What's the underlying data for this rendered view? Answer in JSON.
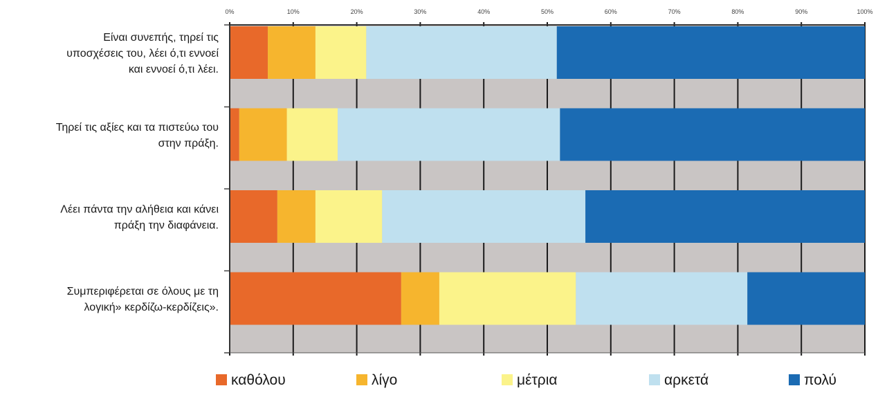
{
  "chart_data": {
    "type": "bar",
    "stacked": "percent",
    "orientation": "horizontal",
    "categories": [
      [
        "Είναι συνεπής, τηρεί τις",
        "υποσχέσεις του, λέει ό,τι εννοεί",
        "και εννοεί ό,τι λέει."
      ],
      [
        "Τηρεί τις αξίες και τα πιστεύω του",
        "στην πράξη."
      ],
      [
        "Λέει πάντα την αλήθεια και κάνει",
        "πράξη την διαφάνεια."
      ],
      [
        "Συμπεριφέρεται σε όλους με τη",
        "λογική» κερδίζω-κερδίζεις»."
      ]
    ],
    "series": [
      {
        "name": "καθόλου",
        "color": "#e8692a",
        "values": [
          6,
          1.5,
          7.5,
          27
        ]
      },
      {
        "name": "λίγο",
        "color": "#f6b52e",
        "values": [
          7.5,
          7.5,
          6,
          6
        ]
      },
      {
        "name": "μέτρια",
        "color": "#fbf38a",
        "values": [
          8,
          8,
          10.5,
          21.5
        ]
      },
      {
        "name": "αρκετά",
        "color": "#bfe0ef",
        "values": [
          30,
          35,
          32,
          27
        ]
      },
      {
        "name": "πολύ",
        "color": "#1b6bb3",
        "values": [
          48.5,
          48,
          44,
          18.5
        ]
      }
    ],
    "xlim": [
      0,
      100
    ],
    "x_ticks": [
      "0%",
      "10%",
      "20%",
      "30%",
      "40%",
      "50%",
      "60%",
      "70%",
      "80%",
      "90%",
      "100%"
    ],
    "axis_position": "top",
    "grid": true,
    "legend_position": "bottom",
    "plot_background": "#c9c5c4",
    "grid_color": "#1a1a1a"
  }
}
